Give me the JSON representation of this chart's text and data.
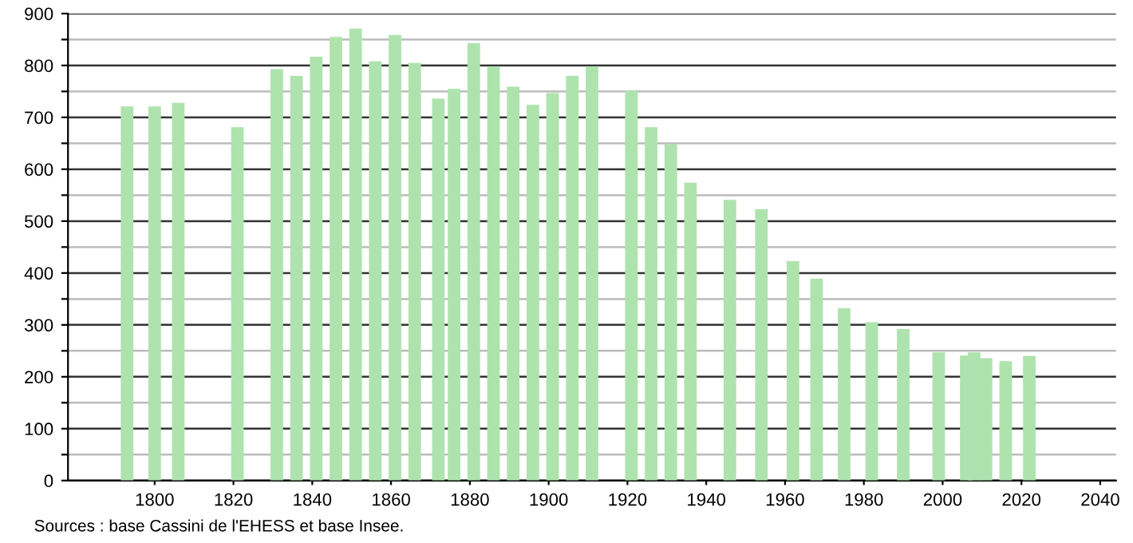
{
  "chart_data": {
    "type": "bar",
    "x": [
      1793,
      1800,
      1806,
      1821,
      1831,
      1836,
      1841,
      1846,
      1851,
      1856,
      1861,
      1866,
      1872,
      1876,
      1881,
      1886,
      1891,
      1896,
      1901,
      1906,
      1911,
      1921,
      1926,
      1931,
      1936,
      1946,
      1954,
      1962,
      1968,
      1975,
      1982,
      1990,
      1999,
      2006,
      2008,
      2011,
      2016,
      2021,
      2022
    ],
    "values": [
      721,
      721,
      728,
      681,
      793,
      780,
      817,
      855,
      871,
      808,
      859,
      805,
      736,
      755,
      843,
      798,
      759,
      724,
      747,
      780,
      798,
      752,
      681,
      648,
      574,
      541,
      523,
      423,
      389,
      332,
      305,
      292,
      247,
      241,
      247,
      236,
      230,
      null,
      240
    ],
    "color": "#aee3ae",
    "xlim": [
      1778,
      2044
    ],
    "xticks": [
      1800,
      1820,
      1840,
      1860,
      1880,
      1900,
      1920,
      1940,
      1960,
      1980,
      2000,
      2020,
      2040
    ],
    "ylim": [
      0,
      900
    ],
    "yticks": [
      0,
      {
        "value": 50,
        "label": null
      },
      100,
      {
        "value": 150,
        "label": null
      },
      200,
      {
        "value": 250,
        "label": null
      },
      300,
      {
        "value": 350,
        "label": null
      },
      400,
      {
        "value": 450,
        "label": null
      },
      500,
      {
        "value": 550,
        "label": null
      },
      600,
      {
        "value": 650,
        "label": null
      },
      700,
      {
        "value": 750,
        "label": null
      },
      800,
      {
        "value": 850,
        "label": null
      },
      900
    ],
    "grid": "y",
    "legend": false,
    "annotations": [
      "Sources : base Cassini de l'EHESS et base Insee."
    ]
  }
}
